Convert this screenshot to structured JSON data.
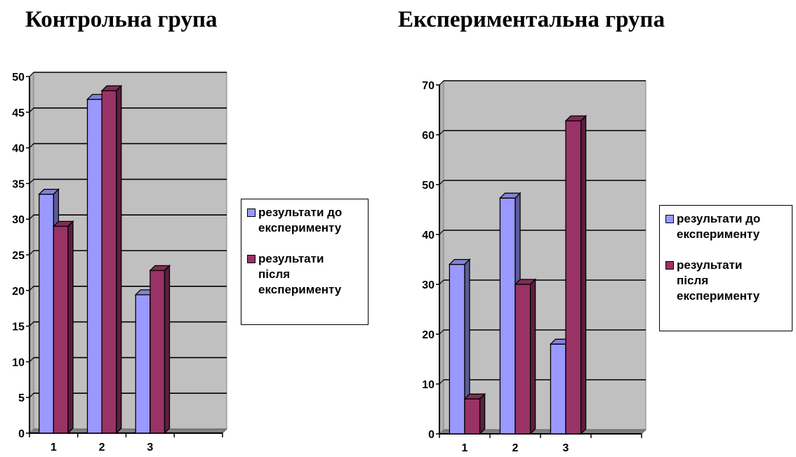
{
  "chart_data": [
    {
      "type": "bar",
      "title": "Контрольна група",
      "categories": [
        "1",
        "2",
        "3"
      ],
      "series": [
        {
          "name": "результати до експерименту",
          "values": [
            33.5,
            46.8,
            19.4
          ]
        },
        {
          "name": "результати після експерименту",
          "values": [
            29,
            48,
            22.8
          ]
        }
      ],
      "ylim": [
        0,
        50
      ],
      "yticks": [
        0,
        5,
        10,
        15,
        20,
        25,
        30,
        35,
        40,
        45,
        50
      ],
      "grid": true,
      "legend": "right"
    },
    {
      "type": "bar",
      "title": "Експериментальна група",
      "categories": [
        "1",
        "2",
        "3"
      ],
      "series": [
        {
          "name": "результати до експерименту",
          "values": [
            34,
            47.3,
            18
          ]
        },
        {
          "name": "результати після експерименту",
          "values": [
            7,
            30,
            62.8
          ]
        }
      ],
      "ylim": [
        0,
        70
      ],
      "yticks": [
        0,
        10,
        20,
        30,
        40,
        50,
        60,
        70
      ],
      "grid": true,
      "legend": "right"
    }
  ],
  "legend_labels": {
    "before": [
      "результати до",
      "експерименту"
    ],
    "after": [
      "результати",
      "після",
      "експерименту"
    ]
  },
  "colors": {
    "before": "#9999ff",
    "after": "#993366",
    "plot_bg": "#c0c0c0"
  }
}
